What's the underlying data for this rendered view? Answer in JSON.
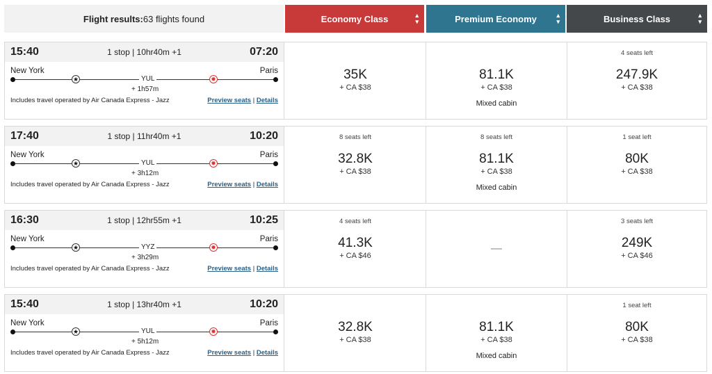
{
  "header": {
    "summary_label": "Flight results:",
    "summary_count": "63 flights found",
    "cabins": [
      {
        "label": "Economy Class",
        "color": "#c8393a"
      },
      {
        "label": "Premium Economy",
        "color": "#2f7590"
      },
      {
        "label": "Business Class",
        "color": "#45484b"
      }
    ]
  },
  "links": {
    "preview": "Preview seats",
    "sep": "|",
    "details": "Details"
  },
  "flights": [
    {
      "depart": "15:40",
      "info": "1 stop | 10hr40m +1",
      "arrive": "07:20",
      "origin": "New York",
      "dest": "Paris",
      "via": "YUL",
      "layover": "+ 1h57m",
      "operator": "Includes travel operated by Air Canada Express - Jazz",
      "fares": [
        {
          "seats": "",
          "points": "35K",
          "tax": "+ CA $38",
          "note": ""
        },
        {
          "seats": "",
          "points": "81.1K",
          "tax": "+ CA $38",
          "note": "Mixed cabin"
        },
        {
          "seats": "4 seats left",
          "points": "247.9K",
          "tax": "+ CA $38",
          "note": ""
        }
      ]
    },
    {
      "depart": "17:40",
      "info": "1 stop | 11hr40m +1",
      "arrive": "10:20",
      "origin": "New York",
      "dest": "Paris",
      "via": "YUL",
      "layover": "+ 3h12m",
      "operator": "Includes travel operated by Air Canada Express - Jazz",
      "fares": [
        {
          "seats": "8 seats left",
          "points": "32.8K",
          "tax": "+ CA $38",
          "note": ""
        },
        {
          "seats": "8 seats left",
          "points": "81.1K",
          "tax": "+ CA $38",
          "note": "Mixed cabin"
        },
        {
          "seats": "1 seat left",
          "points": "80K",
          "tax": "+ CA $38",
          "note": ""
        }
      ]
    },
    {
      "depart": "16:30",
      "info": "1 stop | 12hr55m +1",
      "arrive": "10:25",
      "origin": "New York",
      "dest": "Paris",
      "via": "YYZ",
      "layover": "+ 3h29m",
      "operator": "Includes travel operated by Air Canada Express - Jazz",
      "fares": [
        {
          "seats": "4 seats left",
          "points": "41.3K",
          "tax": "+ CA $46",
          "note": ""
        },
        {
          "unavailable": "—"
        },
        {
          "seats": "3 seats left",
          "points": "249K",
          "tax": "+ CA $46",
          "note": ""
        }
      ]
    },
    {
      "depart": "15:40",
      "info": "1 stop | 13hr40m +1",
      "arrive": "10:20",
      "origin": "New York",
      "dest": "Paris",
      "via": "YUL",
      "layover": "+ 5h12m",
      "operator": "Includes travel operated by Air Canada Express - Jazz",
      "fares": [
        {
          "seats": "",
          "points": "32.8K",
          "tax": "+ CA $38",
          "note": ""
        },
        {
          "seats": "",
          "points": "81.1K",
          "tax": "+ CA $38",
          "note": "Mixed cabin"
        },
        {
          "seats": "1 seat left",
          "points": "80K",
          "tax": "+ CA $38",
          "note": ""
        }
      ]
    }
  ]
}
